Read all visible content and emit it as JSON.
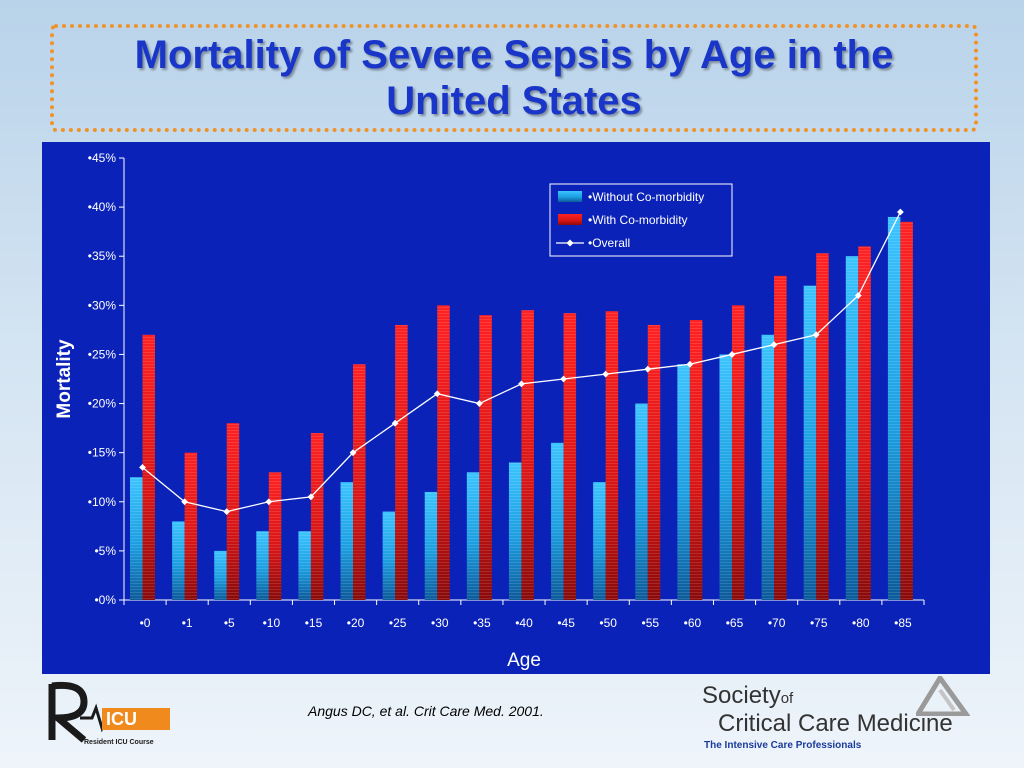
{
  "slide": {
    "title": "Mortality of Severe Sepsis by Age in the United States",
    "citation": "Angus DC, et al. Crit Care Med. 2001.",
    "logo_left_caption": "Resident ICU Course",
    "logo_right": {
      "line1_main": "Society",
      "line1_small": "of",
      "line2": "Critical Care Medicine",
      "tagline": "The Intensive Care Professionals"
    }
  },
  "colors": {
    "panel_bg": "#0a22b8",
    "without": "#2ab3f0",
    "with": "#dd1a1a",
    "overall": "#ffffff",
    "title": "#1a36c9",
    "title_border": "#f0922a"
  },
  "chart_data": {
    "type": "bar",
    "xlabel": "Age",
    "ylabel": "Mortality",
    "ylim": [
      0,
      45
    ],
    "yticks": [
      "•0%",
      "•5%",
      "•10%",
      "•15%",
      "•20%",
      "•25%",
      "•30%",
      "•35%",
      "•40%",
      "•45%"
    ],
    "categories": [
      "•0",
      "•1",
      "•5",
      "•10",
      "•15",
      "•20",
      "•25",
      "•30",
      "•35",
      "•40",
      "•45",
      "•50",
      "•55",
      "•60",
      "•65",
      "•70",
      "•75",
      "•80",
      "•85"
    ],
    "legend_position": "top-right",
    "series": [
      {
        "name": "•Without Co-morbidity",
        "kind": "bar",
        "values": [
          12.5,
          8,
          5,
          7,
          7,
          12,
          9,
          11,
          13,
          14,
          16,
          12,
          20,
          24,
          25,
          27,
          32,
          35,
          39
        ]
      },
      {
        "name": "•With Co-morbidity",
        "kind": "bar",
        "values": [
          27,
          15,
          18,
          13,
          17,
          24,
          28,
          30,
          29,
          29.5,
          29.2,
          29.4,
          28,
          28.5,
          30,
          33,
          35.3,
          36,
          38.5
        ]
      },
      {
        "name": "•Overall",
        "kind": "line",
        "values": [
          13.5,
          10,
          9,
          10,
          10.5,
          15,
          18,
          21,
          20,
          22,
          22.5,
          23,
          23.5,
          24,
          25,
          26,
          27,
          31,
          39.5
        ]
      }
    ]
  }
}
